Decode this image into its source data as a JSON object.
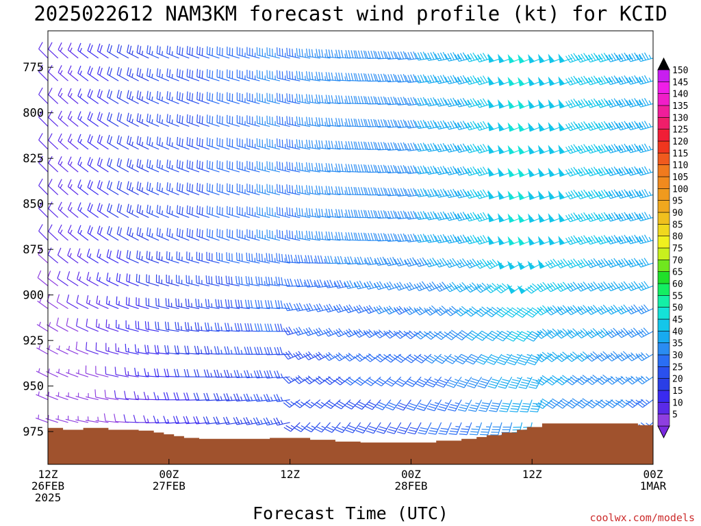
{
  "chart_data": {
    "type": "wind_barb_profile",
    "title": "2025022612 NAM3KM forecast wind profile (kt) for KCID",
    "xlabel": "Forecast Time (UTC)",
    "ylabel": "",
    "units": "kt",
    "credit": "coolwx.com/models",
    "y_axis": {
      "ticks": [
        775,
        800,
        825,
        850,
        875,
        900,
        925,
        950,
        975
      ],
      "range": [
        755,
        993
      ],
      "inverted": true
    },
    "x_axis": {
      "range": [
        0,
        60
      ],
      "ticks": [
        {
          "hour": 0,
          "line1": "12Z",
          "line2": "26FEB",
          "line3": "2025"
        },
        {
          "hour": 12,
          "line1": "00Z",
          "line2": "27FEB",
          "line3": ""
        },
        {
          "hour": 24,
          "line1": "12Z",
          "line2": "",
          "line3": ""
        },
        {
          "hour": 36,
          "line1": "00Z",
          "line2": "28FEB",
          "line3": ""
        },
        {
          "hour": 48,
          "line1": "12Z",
          "line2": "",
          "line3": ""
        },
        {
          "hour": 60,
          "line1": "00Z",
          "line2": "1MAR",
          "line3": ""
        }
      ]
    },
    "colorbar": {
      "levels": [
        5,
        10,
        15,
        20,
        25,
        30,
        35,
        40,
        45,
        50,
        55,
        60,
        65,
        70,
        75,
        80,
        85,
        90,
        95,
        100,
        105,
        110,
        115,
        120,
        125,
        130,
        135,
        140,
        145,
        150
      ],
      "colors": [
        "#8f3fe0",
        "#5a2ae8",
        "#3a2af0",
        "#2a3ee6",
        "#2a50ee",
        "#2a6ef4",
        "#2a8cf2",
        "#18aaf0",
        "#14c6ea",
        "#14e2d8",
        "#14f0a6",
        "#14ee62",
        "#20e02a",
        "#70e61e",
        "#c8f01e",
        "#f0f01e",
        "#f0d81e",
        "#f0c01e",
        "#f0a81e",
        "#f09a1e",
        "#f08a1e",
        "#f07a1e",
        "#f05a1e",
        "#f0361e",
        "#f01e36",
        "#f01e6a",
        "#f01e9a",
        "#f01ec8",
        "#f01ee8",
        "#c81ef0"
      ],
      "over_color": "#000000",
      "under_color": "#7a2ae0"
    },
    "terrain": {
      "color": "#a0522d",
      "hours": [
        0,
        1.5,
        3.5,
        6,
        9,
        10.5,
        11.5,
        12.5,
        13.5,
        15,
        18,
        22,
        24.5,
        26,
        28.5,
        31,
        34,
        37,
        38.5,
        41,
        42.5,
        43.5,
        45,
        46.5,
        47.5,
        49,
        55,
        58.5,
        60
      ],
      "pressure": [
        973,
        974,
        973,
        974,
        974.5,
        975.5,
        976.5,
        977.5,
        978.5,
        979,
        979,
        978.5,
        978.5,
        979.5,
        980.5,
        981,
        981,
        981,
        980,
        979,
        978,
        977,
        975.5,
        974,
        972.5,
        970.5,
        970.5,
        971.5,
        972.5
      ]
    },
    "barbs": {
      "hours": [
        0,
        1,
        2,
        3,
        4,
        5,
        6,
        7,
        8,
        9,
        10,
        11,
        12,
        13,
        14,
        15,
        16,
        17,
        18,
        19,
        20,
        21,
        22,
        23,
        24,
        25,
        26,
        27,
        28,
        29,
        30,
        31,
        32,
        33,
        34,
        35,
        36,
        37,
        38,
        39,
        40,
        41,
        42,
        43,
        44,
        45,
        46,
        47,
        48,
        49,
        50,
        51,
        52,
        53,
        54,
        55,
        56,
        57,
        58,
        59,
        60
      ],
      "levels": [
        770,
        782.5,
        795,
        807.5,
        820,
        832.5,
        845,
        857.5,
        870,
        882.5,
        895,
        907.5,
        920,
        932.5,
        945,
        957.5,
        970
      ],
      "note": "Barb glyphs are a schematic reconstruction of the forecast wind field: speeds increase from about 10-25 kt early in the period to 40-55 kt near 12Z 28FEB; directions shift from northwesterly to southwesterly/westerly."
    }
  }
}
